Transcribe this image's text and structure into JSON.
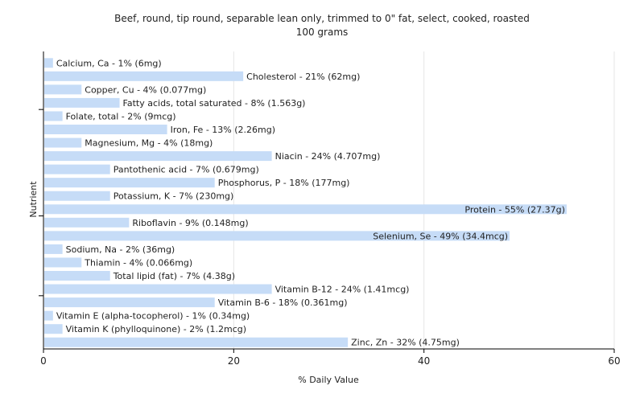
{
  "chart_data": {
    "type": "bar",
    "orientation": "horizontal",
    "title": "Beef, round, tip round, separable lean only, trimmed to 0\" fat, select, cooked, roasted",
    "subtitle": "100 grams",
    "xlabel": "% Daily Value",
    "ylabel": "Nutrient",
    "xlim": [
      0,
      60
    ],
    "xticks": [
      "0",
      "20",
      "40",
      "60"
    ],
    "grid": true,
    "bar_color": "#c6dcf7",
    "categories": [
      "Calcium, Ca",
      "Cholesterol",
      "Copper, Cu",
      "Fatty acids, total saturated",
      "Folate, total",
      "Iron, Fe",
      "Magnesium, Mg",
      "Niacin",
      "Pantothenic acid",
      "Phosphorus, P",
      "Potassium, K",
      "Protein",
      "Riboflavin",
      "Selenium, Se",
      "Sodium, Na",
      "Thiamin",
      "Total lipid (fat)",
      "Vitamin B-12",
      "Vitamin B-6",
      "Vitamin E (alpha-tocopherol)",
      "Vitamin K (phylloquinone)",
      "Zinc, Zn"
    ],
    "values": [
      1,
      21,
      4,
      8,
      2,
      13,
      4,
      24,
      7,
      18,
      7,
      55,
      9,
      49,
      2,
      4,
      7,
      24,
      18,
      1,
      2,
      32
    ],
    "labels": [
      "Calcium, Ca - 1% (6mg)",
      "Cholesterol - 21% (62mg)",
      "Copper, Cu - 4% (0.077mg)",
      "Fatty acids, total saturated - 8% (1.563g)",
      "Folate, total - 2% (9mcg)",
      "Iron, Fe - 13% (2.26mg)",
      "Magnesium, Mg - 4% (18mg)",
      "Niacin - 24% (4.707mg)",
      "Pantothenic acid - 7% (0.679mg)",
      "Phosphorus, P - 18% (177mg)",
      "Potassium, K - 7% (230mg)",
      "Protein - 55% (27.37g)",
      "Riboflavin - 9% (0.148mg)",
      "Selenium, Se - 49% (34.4mcg)",
      "Sodium, Na - 2% (36mg)",
      "Thiamin - 4% (0.066mg)",
      "Total lipid (fat) - 7% (4.38g)",
      "Vitamin B-12 - 24% (1.41mcg)",
      "Vitamin B-6 - 18% (0.361mg)",
      "Vitamin E (alpha-tocopherol) - 1% (0.34mg)",
      "Vitamin K (phylloquinone) - 2% (1.2mcg)",
      "Zinc, Zn - 32% (4.75mg)"
    ]
  }
}
